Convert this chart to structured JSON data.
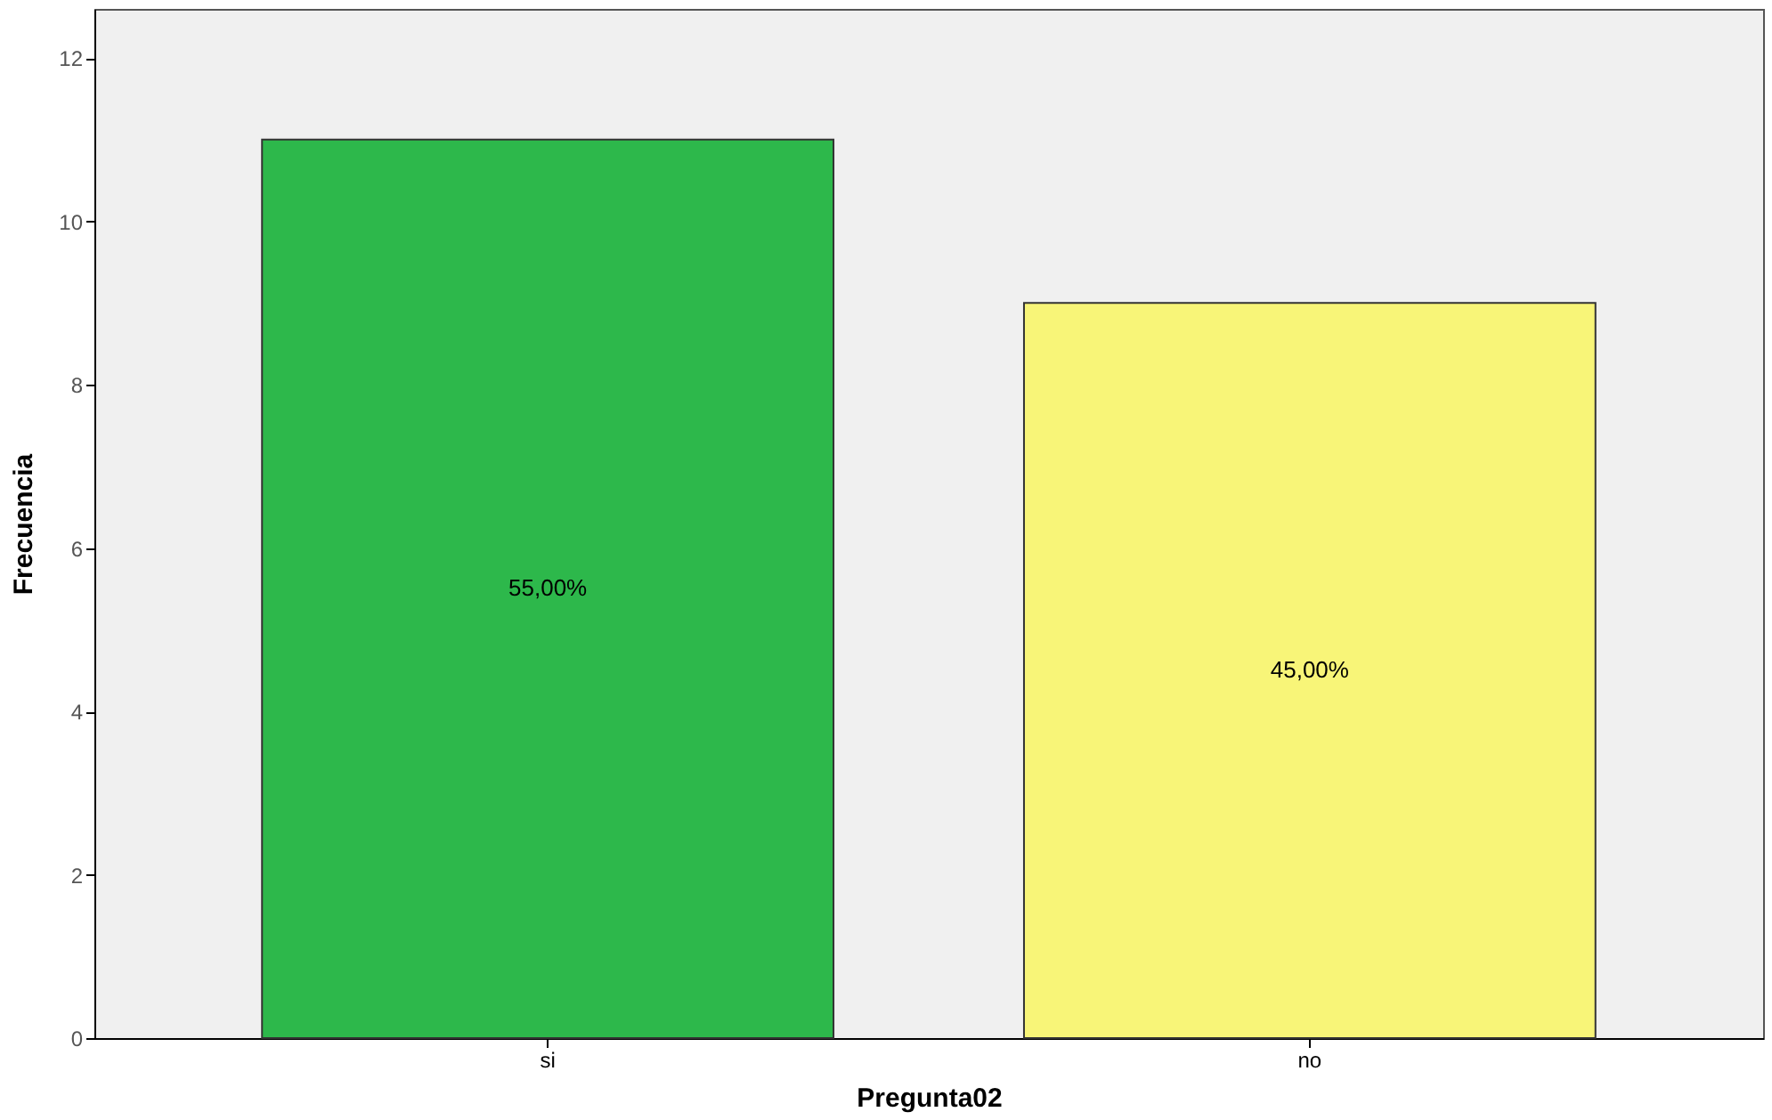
{
  "chart_data": {
    "type": "bar",
    "xlabel": "Pregunta02",
    "ylabel": "Frecuencia",
    "categories": [
      "si",
      "no"
    ],
    "values": [
      11,
      9
    ],
    "colors": [
      "#2db84b",
      "#f8f578"
    ],
    "annotations": [
      "55,00%",
      "45,00%"
    ],
    "ylim": [
      0,
      12.6
    ],
    "yticks": [
      0,
      2,
      4,
      6,
      8,
      10,
      12
    ],
    "grid": false
  }
}
